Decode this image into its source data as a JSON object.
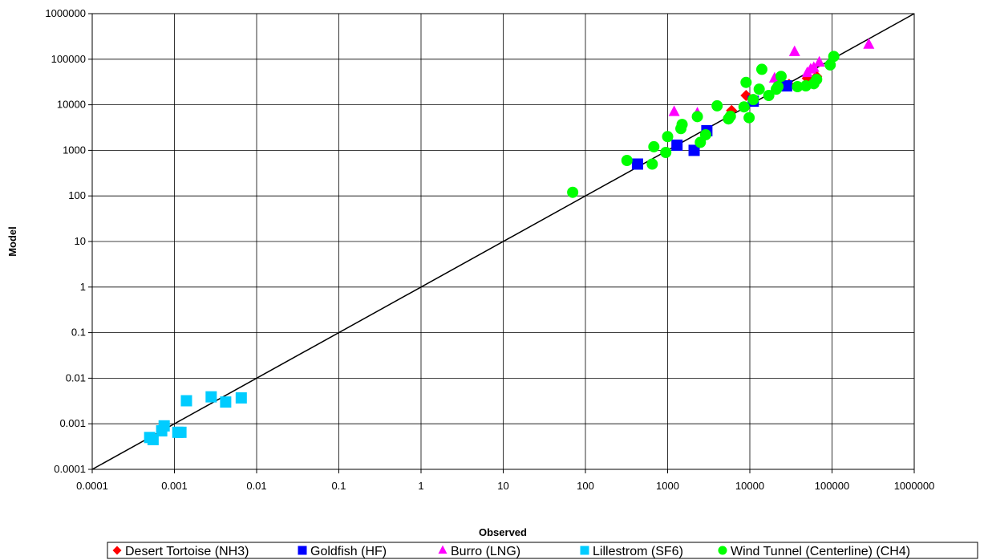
{
  "chart_data": {
    "type": "scatter",
    "title": "",
    "xlabel": "Observed",
    "ylabel": "Model",
    "x_scale": "log",
    "y_scale": "log",
    "xlim": [
      0.0001,
      1000000
    ],
    "ylim": [
      0.0001,
      1000000
    ],
    "x_ticks": [
      "0.0001",
      "0.001",
      "0.01",
      "0.1",
      "1",
      "10",
      "100",
      "1000",
      "10000",
      "100000",
      "1000000"
    ],
    "y_ticks": [
      "0.0001",
      "0.001",
      "0.01",
      "0.1",
      "1",
      "10",
      "100",
      "1000",
      "10000",
      "100000",
      "1000000"
    ],
    "grid": true,
    "legend_position": "bottom",
    "reference_line": {
      "type": "y=x",
      "color": "#000000"
    },
    "series": [
      {
        "name": "Desert Tortoise (NH3)",
        "marker": "diamond",
        "color": "#ff0000",
        "points": [
          [
            6000,
            7500
          ],
          [
            9000,
            16000
          ],
          [
            30000,
            28000
          ],
          [
            50000,
            38000
          ],
          [
            65000,
            42000
          ]
        ]
      },
      {
        "name": "Goldfish (HF)",
        "marker": "square",
        "color": "#0000ff",
        "points": [
          [
            430,
            500
          ],
          [
            1300,
            1300
          ],
          [
            2100,
            1000
          ],
          [
            3000,
            2700
          ],
          [
            11000,
            12000
          ],
          [
            28000,
            26000
          ]
        ]
      },
      {
        "name": "Burro (LNG)",
        "marker": "triangle",
        "color": "#ff00ff",
        "points": [
          [
            1200,
            7000
          ],
          [
            2300,
            6500
          ],
          [
            20000,
            38000
          ],
          [
            35000,
            145000
          ],
          [
            50000,
            50000
          ],
          [
            55000,
            60000
          ],
          [
            60000,
            65000
          ],
          [
            70000,
            85000
          ],
          [
            280000,
            210000
          ]
        ]
      },
      {
        "name": "Lillestrom (SF6)",
        "marker": "square",
        "color": "#00ccff",
        "points": [
          [
            0.0005,
            0.0005
          ],
          [
            0.00055,
            0.00045
          ],
          [
            0.0007,
            0.0007
          ],
          [
            0.00075,
            0.0009
          ],
          [
            0.0011,
            0.00065
          ],
          [
            0.0012,
            0.00065
          ],
          [
            0.0014,
            0.0032
          ],
          [
            0.0028,
            0.0039
          ],
          [
            0.0042,
            0.003
          ],
          [
            0.0065,
            0.0037
          ]
        ]
      },
      {
        "name": "Wind Tunnel (Centerline) (CH4)",
        "marker": "circle",
        "color": "#00ff00",
        "points": [
          [
            70,
            120
          ],
          [
            320,
            600
          ],
          [
            650,
            500
          ],
          [
            680,
            1200
          ],
          [
            950,
            900
          ],
          [
            1000,
            2000
          ],
          [
            1450,
            3000
          ],
          [
            1500,
            3700
          ],
          [
            2300,
            5500
          ],
          [
            2500,
            1500
          ],
          [
            2900,
            2200
          ],
          [
            4000,
            9500
          ],
          [
            5500,
            4900
          ],
          [
            5800,
            5600
          ],
          [
            8500,
            9000
          ],
          [
            9000,
            31000
          ],
          [
            9800,
            5200
          ],
          [
            11000,
            13000
          ],
          [
            13000,
            22000
          ],
          [
            14000,
            60000
          ],
          [
            17000,
            16000
          ],
          [
            21000,
            22000
          ],
          [
            22000,
            25000
          ],
          [
            24000,
            42000
          ],
          [
            38000,
            25000
          ],
          [
            48000,
            26000
          ],
          [
            60000,
            29000
          ],
          [
            65000,
            36000
          ],
          [
            95000,
            75000
          ],
          [
            105000,
            115000
          ]
        ]
      }
    ]
  }
}
